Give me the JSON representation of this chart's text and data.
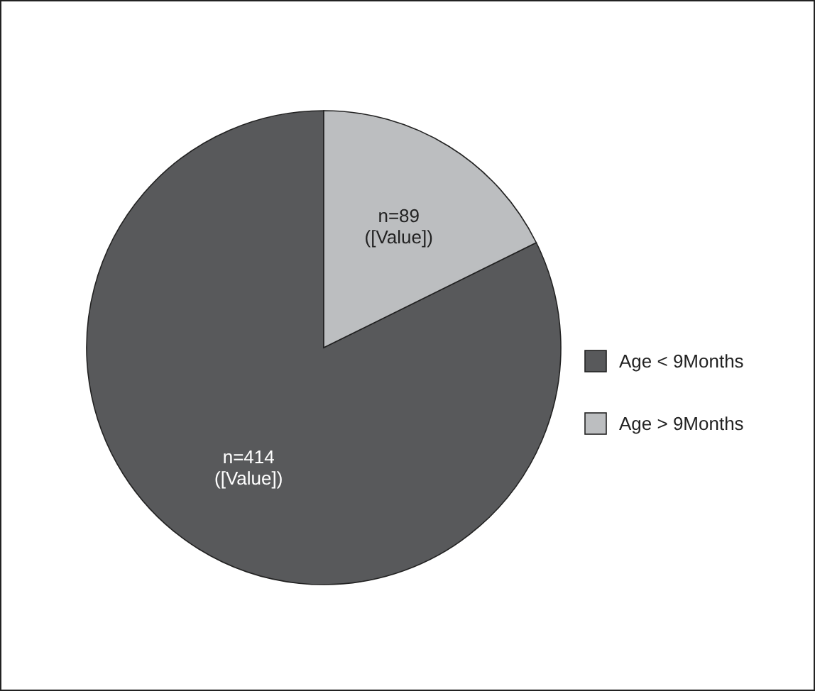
{
  "chart_data": {
    "type": "pie",
    "categories": [
      "Age < 9Months",
      "Age > 9Months"
    ],
    "values": [
      414,
      89
    ],
    "colors": [
      "#58595b",
      "#bcbec0"
    ],
    "value_labels": [
      "n=414\n([Value])",
      "n=89\n([Value])"
    ],
    "legend": "right"
  }
}
